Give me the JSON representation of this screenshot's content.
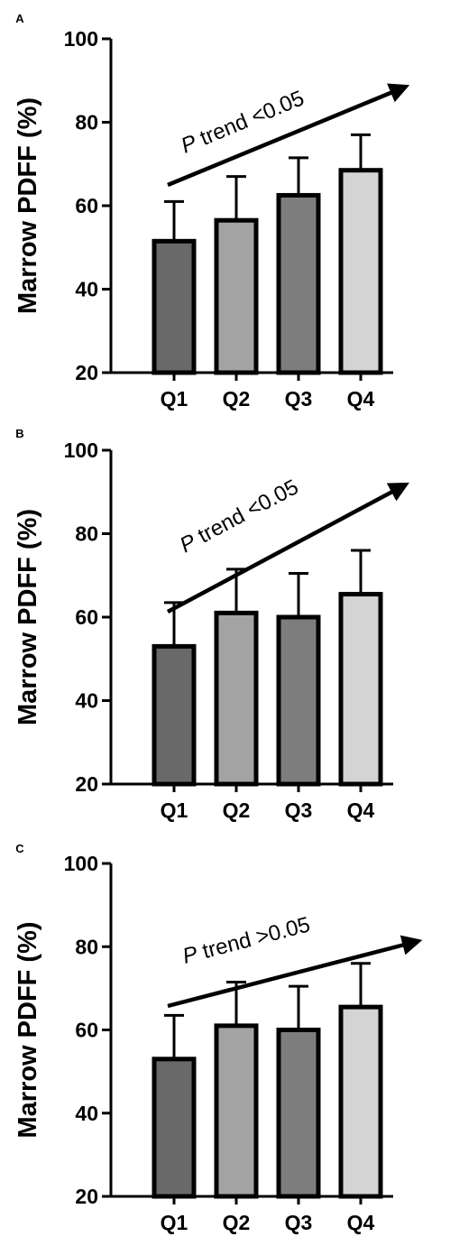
{
  "chart_data": [
    {
      "panel_label": "A",
      "type": "bar",
      "ylabel": "Marrow PDFF (%)",
      "ylim": [
        20,
        100
      ],
      "yticks": [
        "20",
        "40",
        "60",
        "80",
        "100"
      ],
      "categories": [
        "Q1",
        "Q2",
        "Q3",
        "Q4"
      ],
      "values": [
        51.5,
        56.5,
        62.5,
        68.5
      ],
      "error_upper": [
        61,
        67,
        71.5,
        77
      ],
      "bar_colors": [
        "#696969",
        "#a3a3a3",
        "#7d7d7d",
        "#d4d4d4"
      ],
      "annotation": {
        "p": "P",
        "rest": " trend <0.05"
      }
    },
    {
      "panel_label": "B",
      "type": "bar",
      "ylabel": "Marrow PDFF (%)",
      "ylim": [
        20,
        100
      ],
      "yticks": [
        "20",
        "40",
        "60",
        "80",
        "100"
      ],
      "categories": [
        "Q1",
        "Q2",
        "Q3",
        "Q4"
      ],
      "values": [
        53,
        61,
        60,
        65.5
      ],
      "error_upper": [
        63.5,
        71.5,
        70.5,
        76
      ],
      "bar_colors": [
        "#696969",
        "#a3a3a3",
        "#7d7d7d",
        "#d4d4d4"
      ],
      "annotation": {
        "p": "P",
        "rest": " trend <0.05"
      }
    },
    {
      "panel_label": "C",
      "type": "bar",
      "ylabel": "Marrow PDFF (%)",
      "ylim": [
        20,
        100
      ],
      "yticks": [
        "20",
        "40",
        "60",
        "80",
        "100"
      ],
      "categories": [
        "Q1",
        "Q2",
        "Q3",
        "Q4"
      ],
      "values": [
        53,
        61,
        60,
        65.5
      ],
      "error_upper": [
        63.5,
        71.5,
        70.5,
        76
      ],
      "bar_colors": [
        "#696969",
        "#a3a3a3",
        "#7d7d7d",
        "#d4d4d4"
      ],
      "annotation": {
        "p": "P",
        "rest": " trend >0.05"
      }
    }
  ]
}
